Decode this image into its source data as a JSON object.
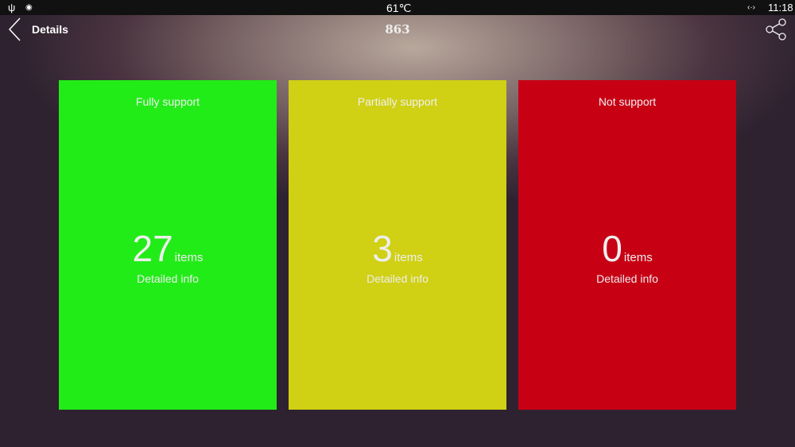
{
  "status_bar": {
    "temperature": "61℃",
    "time": "11:18",
    "icons": [
      "usb-icon",
      "shield-icon",
      "network-arrows-icon"
    ]
  },
  "header": {
    "back_icon": "chevron-left-icon",
    "title": "Details",
    "center": "863",
    "share_icon": "share-icon"
  },
  "cards": [
    {
      "label": "Fully support",
      "count": "27",
      "unit": "items",
      "link": "Detailed info",
      "color": "#22ec18"
    },
    {
      "label": "Partially support",
      "count": "3",
      "unit": "items",
      "link": "Detailed info",
      "color": "#d0d014"
    },
    {
      "label": "Not support",
      "count": "0",
      "unit": "items",
      "link": "Detailed info",
      "color": "#c80014"
    }
  ]
}
